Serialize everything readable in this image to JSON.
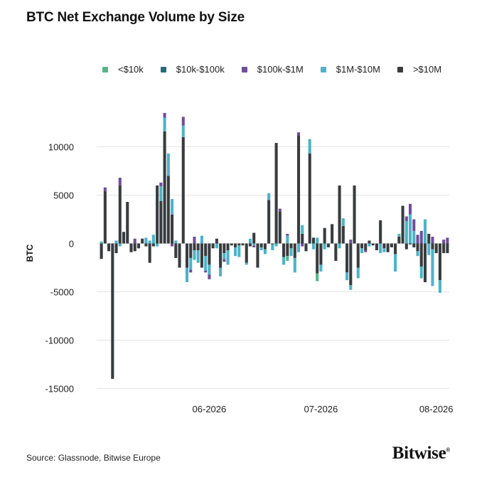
{
  "title": "BTC Net Exchange Volume by Size",
  "source": "Source: Glassnode, Bitwise Europe",
  "brand": "Bitwise",
  "chart_data": {
    "type": "bar",
    "stacked": true,
    "title": "BTC Net Exchange Volume by Size",
    "ylabel": "BTC",
    "xlabel": "",
    "ylim": [
      -15000,
      12500
    ],
    "yticks": [
      -15000,
      -10000,
      -5000,
      0,
      5000,
      10000
    ],
    "ytick_labels": [
      "-15000",
      "-10000",
      "-5000",
      "0",
      "5000",
      "10000"
    ],
    "xtick_labels": [
      "06-2026",
      "07-2026",
      "08-2026"
    ],
    "xtick_positions": [
      30,
      60,
      91
    ],
    "grid": true,
    "legend_position": "top",
    "colors": {
      "lt10k": "#52b788",
      "10k_100k": "#2a6a78",
      "100k_1m": "#6f4e9c",
      "1m_10m": "#4db3c4",
      "gt10m": "#383c3f"
    },
    "legend": [
      "<$10k",
      "$10k-$100k",
      "$100k-$1M",
      "$1M-$10M",
      ">$10M"
    ],
    "series_keys": [
      "lt10k",
      "10k_100k",
      "100k_1m",
      "1m_10m",
      "gt10m"
    ],
    "days": [
      1,
      2,
      3,
      4,
      5,
      6,
      7,
      8,
      9,
      10,
      11,
      12,
      13,
      14,
      15,
      16,
      17,
      18,
      19,
      20,
      21,
      22,
      23,
      24,
      25,
      26,
      27,
      28,
      29,
      30,
      31,
      32,
      33,
      34,
      35,
      36,
      37,
      38,
      39,
      40,
      41,
      42,
      43,
      44,
      45,
      46,
      47,
      48,
      49,
      50,
      51,
      52,
      53,
      54,
      55,
      56,
      57,
      58,
      59,
      60,
      61,
      62,
      63,
      64,
      65,
      66,
      67,
      68,
      69,
      70,
      71,
      72,
      73,
      74,
      75,
      76,
      77,
      78,
      79,
      80,
      81,
      82,
      83,
      84,
      85,
      86,
      87,
      88,
      89,
      90,
      91,
      92,
      93,
      94
    ],
    "series": [
      {
        "name": "<$10k",
        "key": "lt10k",
        "values": [
          0,
          0,
          0,
          0,
          0,
          0,
          0,
          0,
          0,
          0,
          0,
          0,
          0,
          0,
          0,
          0,
          0,
          0,
          0,
          0,
          0,
          0,
          0,
          0,
          0,
          0,
          0,
          0,
          0,
          0,
          0,
          0,
          0,
          0,
          0,
          0,
          0,
          0,
          0,
          0,
          0,
          0,
          0,
          0,
          0,
          0,
          0,
          0,
          0,
          0,
          -500,
          0,
          0,
          0,
          0,
          0,
          0,
          0,
          -800,
          0,
          0,
          0,
          0,
          0,
          0,
          0,
          0,
          0,
          0,
          0,
          0,
          0,
          0,
          0,
          0,
          0,
          0,
          0,
          0,
          0,
          0,
          0,
          0,
          0,
          0,
          0,
          0,
          0,
          0,
          0,
          0,
          0,
          0,
          0
        ]
      },
      {
        "name": "$10k-$100k",
        "key": "10k_100k",
        "values": [
          0,
          0,
          0,
          0,
          0,
          0,
          0,
          0,
          0,
          0,
          0,
          0,
          0,
          0,
          0,
          0,
          0,
          0,
          0,
          0,
          0,
          0,
          0,
          0,
          0,
          0,
          0,
          0,
          0,
          0,
          0,
          0,
          0,
          0,
          0,
          0,
          0,
          0,
          0,
          0,
          0,
          0,
          0,
          0,
          0,
          0,
          0,
          0,
          0,
          0,
          0,
          0,
          0,
          0,
          0,
          0,
          0,
          0,
          0,
          0,
          0,
          0,
          0,
          0,
          0,
          0,
          0,
          0,
          0,
          0,
          0,
          0,
          0,
          0,
          0,
          0,
          0,
          0,
          0,
          0,
          0,
          0,
          0,
          0,
          0,
          0,
          0,
          0,
          0,
          0,
          0,
          0,
          0,
          0
        ]
      },
      {
        "name": "$100k-$1M",
        "key": "100k_1m",
        "values": [
          0,
          400,
          0,
          0,
          0,
          800,
          0,
          0,
          0,
          500,
          0,
          0,
          0,
          0,
          0,
          0,
          400,
          500,
          0,
          -300,
          0,
          0,
          900,
          0,
          -300,
          700,
          0,
          0,
          -200,
          -500,
          0,
          0,
          0,
          -300,
          0,
          0,
          0,
          0,
          0,
          0,
          0,
          -200,
          0,
          0,
          0,
          0,
          0,
          0,
          300,
          0,
          200,
          0,
          0,
          300,
          -300,
          0,
          0,
          0,
          0,
          0,
          0,
          0,
          0,
          0,
          0,
          0,
          0,
          400,
          0,
          0,
          0,
          -200,
          0,
          0,
          0,
          0,
          0,
          0,
          0,
          0,
          0,
          0,
          500,
          1100,
          1200,
          900,
          1300,
          0,
          0,
          700,
          0,
          0,
          400,
          600
        ]
      },
      {
        "name": "$1M-$10M",
        "key": "1m_10m",
        "values": [
          200,
          0,
          0,
          0,
          300,
          -300,
          0,
          0,
          0,
          0,
          0,
          0,
          600,
          300,
          900,
          -300,
          1500,
          1400,
          2300,
          1600,
          300,
          0,
          1200,
          -1500,
          -1200,
          -1000,
          -1300,
          800,
          -1500,
          -1000,
          0,
          -500,
          -900,
          -600,
          -1500,
          0,
          -900,
          -1200,
          0,
          -200,
          500,
          -200,
          0,
          -300,
          -500,
          700,
          -600,
          -300,
          0,
          -800,
          800,
          -800,
          -1500,
          -900,
          900,
          0,
          1500,
          -600,
          600,
          -700,
          -600,
          0,
          0,
          0,
          -500,
          800,
          -800,
          -500,
          0,
          -1100,
          -500,
          0,
          -300,
          0,
          0,
          -1000,
          -400,
          0,
          0,
          -1800,
          300,
          0,
          2300,
          3000,
          1300,
          -500,
          -1200,
          2500,
          -1200,
          -3800,
          0,
          -1300,
          0,
          0
        ]
      },
      {
        "name": ">$10M",
        "key": "gt10m",
        "values": [
          -1600,
          5400,
          -800,
          -14000,
          -1000,
          6000,
          1200,
          4300,
          -900,
          -800,
          -500,
          500,
          -300,
          -2000,
          -300,
          6000,
          4400,
          11600,
          7000,
          3000,
          -1500,
          -2500,
          11000,
          -2500,
          -1500,
          -700,
          -700,
          -2500,
          -1300,
          -2200,
          -500,
          500,
          -2500,
          -1000,
          -700,
          -200,
          -400,
          -200,
          -200,
          -2000,
          -300,
          1100,
          -2500,
          -400,
          -600,
          4500,
          -100,
          10400,
          3300,
          -1400,
          -1300,
          -500,
          -1500,
          11200,
          1000,
          -800,
          9300,
          600,
          -3100,
          -2200,
          1600,
          -400,
          2000,
          -1800,
          6000,
          1800,
          -3000,
          -4300,
          6000,
          -2500,
          -500,
          -700,
          300,
          -200,
          -700,
          2400,
          -500,
          -900,
          -400,
          -1100,
          700,
          3900,
          -600,
          -100,
          -400,
          -800,
          -2400,
          -4000,
          1000,
          -600,
          -1000,
          -3800,
          -1000,
          -1000
        ]
      }
    ]
  }
}
